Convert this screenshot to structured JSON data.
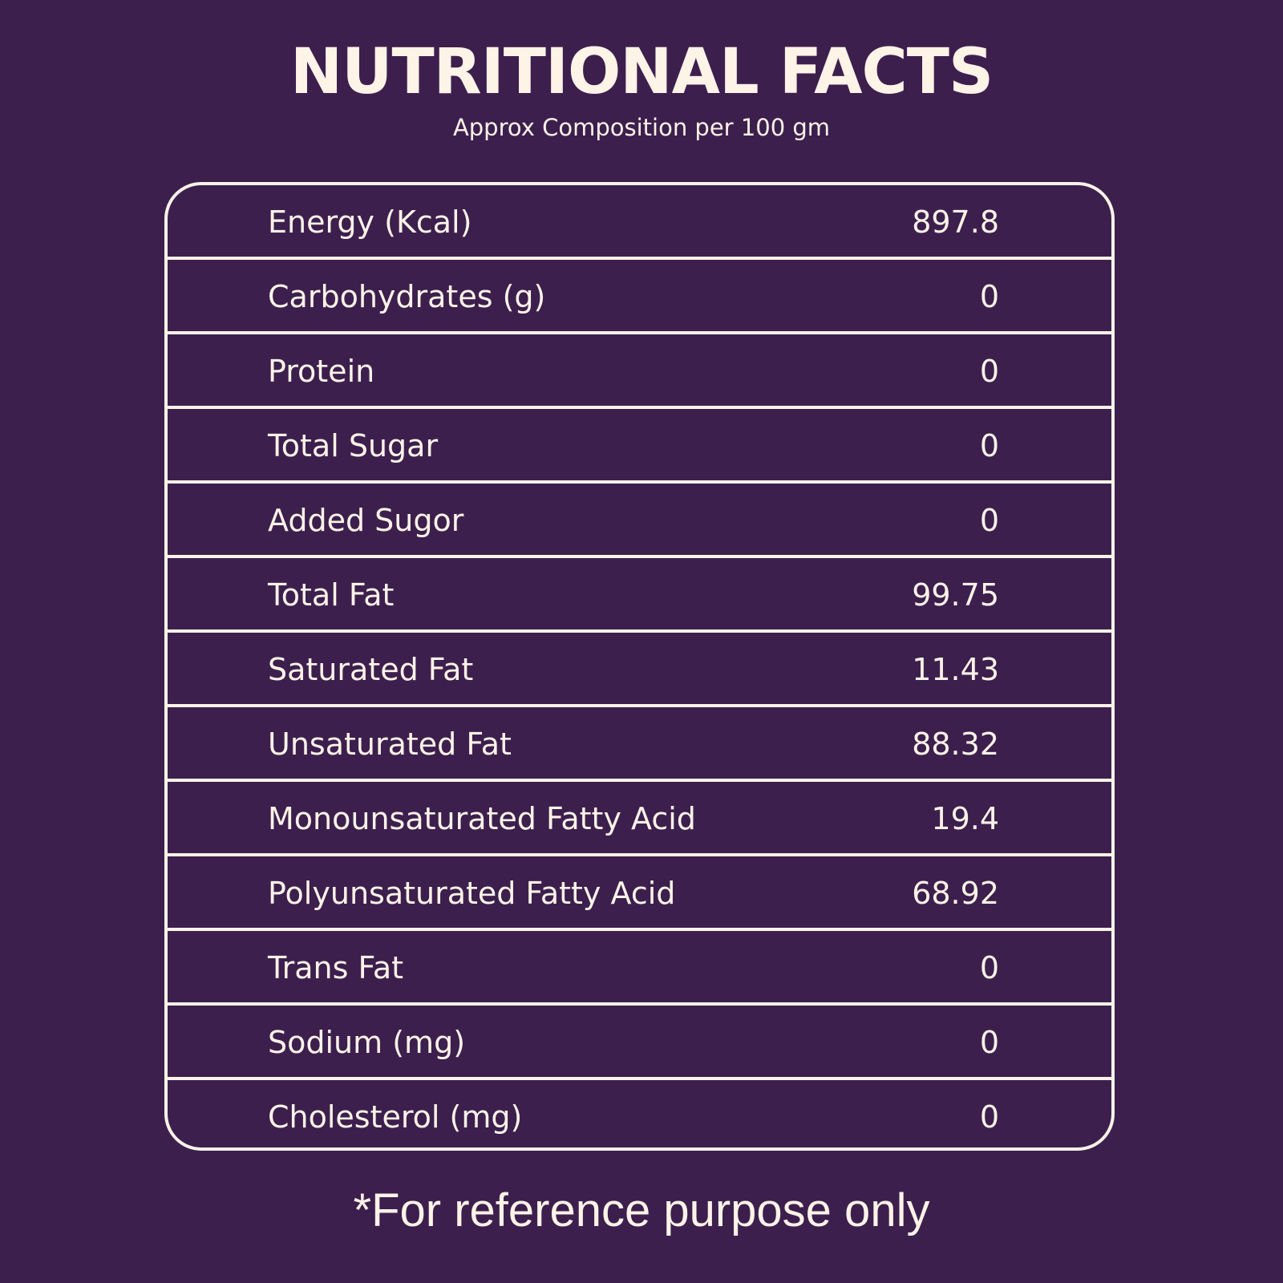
{
  "title": "NUTRITIONAL FACTS",
  "subtitle": "Approx Composition per 100 gm",
  "table": {
    "rows": [
      [
        "Energy (Kcal)",
        897.8
      ],
      [
        "Carbohydrates (g)",
        0
      ],
      [
        "Protein",
        0
      ],
      [
        "Total Sugar",
        0
      ],
      [
        "Added Sugor",
        0
      ],
      [
        "Total Fat",
        99.75
      ],
      [
        "Saturated Fat",
        11.43
      ],
      [
        "Unsaturated Fat",
        88.32
      ],
      [
        "Monounsaturated Fatty Acid",
        19.4
      ],
      [
        "Polyunsaturated Fatty Acid",
        68.92
      ],
      [
        "Trans Fat",
        0
      ],
      [
        "Sodium (mg)",
        0
      ],
      [
        "Cholesterol (mg)",
        0
      ]
    ]
  },
  "footnote": "*For reference purpose only"
}
